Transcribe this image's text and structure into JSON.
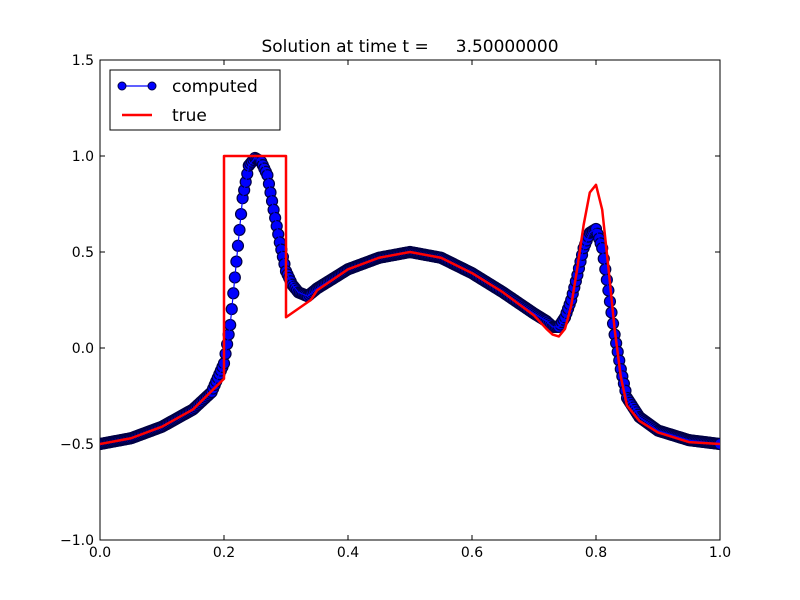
{
  "chart_data": {
    "type": "line",
    "title": "Solution at time t =     3.50000000",
    "xlabel": "",
    "ylabel": "",
    "xlim": [
      0.0,
      1.0
    ],
    "ylim": [
      -1.0,
      1.5
    ],
    "x_ticks": [
      0.0,
      0.2,
      0.4,
      0.6,
      0.8,
      1.0
    ],
    "x_tick_labels": [
      "0.0",
      "0.2",
      "0.4",
      "0.6",
      "0.8",
      "1.0"
    ],
    "y_ticks": [
      -1.0,
      -0.5,
      0.0,
      0.5,
      1.0,
      1.5
    ],
    "y_tick_labels": [
      "−1.0",
      "−0.5",
      "0.0",
      "0.5",
      "1.0",
      "1.5"
    ],
    "grid": false,
    "legend_position": "top-left",
    "series": [
      {
        "name": "computed",
        "color": "#0000ff",
        "marker_edge_color": "#000044",
        "style": "line-with-markers",
        "x": [
          0.0,
          0.05,
          0.1,
          0.15,
          0.18,
          0.2,
          0.21,
          0.22,
          0.23,
          0.24,
          0.25,
          0.26,
          0.27,
          0.28,
          0.29,
          0.3,
          0.31,
          0.32,
          0.335,
          0.35,
          0.4,
          0.45,
          0.5,
          0.55,
          0.6,
          0.65,
          0.7,
          0.72,
          0.73,
          0.74,
          0.75,
          0.76,
          0.77,
          0.78,
          0.79,
          0.8,
          0.81,
          0.82,
          0.83,
          0.84,
          0.85,
          0.87,
          0.9,
          0.95,
          1.0
        ],
        "y": [
          -0.5,
          -0.47,
          -0.41,
          -0.32,
          -0.23,
          -0.08,
          0.12,
          0.45,
          0.78,
          0.95,
          0.99,
          0.97,
          0.9,
          0.72,
          0.55,
          0.4,
          0.33,
          0.29,
          0.27,
          0.31,
          0.41,
          0.47,
          0.5,
          0.47,
          0.39,
          0.29,
          0.18,
          0.14,
          0.11,
          0.11,
          0.16,
          0.25,
          0.38,
          0.52,
          0.6,
          0.62,
          0.52,
          0.3,
          0.07,
          -0.11,
          -0.26,
          -0.36,
          -0.43,
          -0.48,
          -0.5
        ]
      },
      {
        "name": "true",
        "color": "#ff0000",
        "style": "line",
        "x": [
          0.0,
          0.05,
          0.1,
          0.15,
          0.2,
          0.2,
          0.3,
          0.3,
          0.34,
          0.35,
          0.4,
          0.45,
          0.5,
          0.55,
          0.6,
          0.65,
          0.7,
          0.72,
          0.73,
          0.74,
          0.75,
          0.76,
          0.77,
          0.78,
          0.79,
          0.8,
          0.81,
          0.82,
          0.83,
          0.84,
          0.85,
          0.87,
          0.9,
          0.95,
          1.0
        ],
        "y": [
          -0.5,
          -0.47,
          -0.41,
          -0.32,
          -0.16,
          1.0,
          1.0,
          0.16,
          0.25,
          0.3,
          0.41,
          0.47,
          0.5,
          0.47,
          0.39,
          0.29,
          0.17,
          0.1,
          0.07,
          0.06,
          0.1,
          0.22,
          0.42,
          0.64,
          0.81,
          0.85,
          0.72,
          0.42,
          0.1,
          -0.15,
          -0.3,
          -0.38,
          -0.44,
          -0.49,
          -0.5
        ]
      }
    ]
  }
}
